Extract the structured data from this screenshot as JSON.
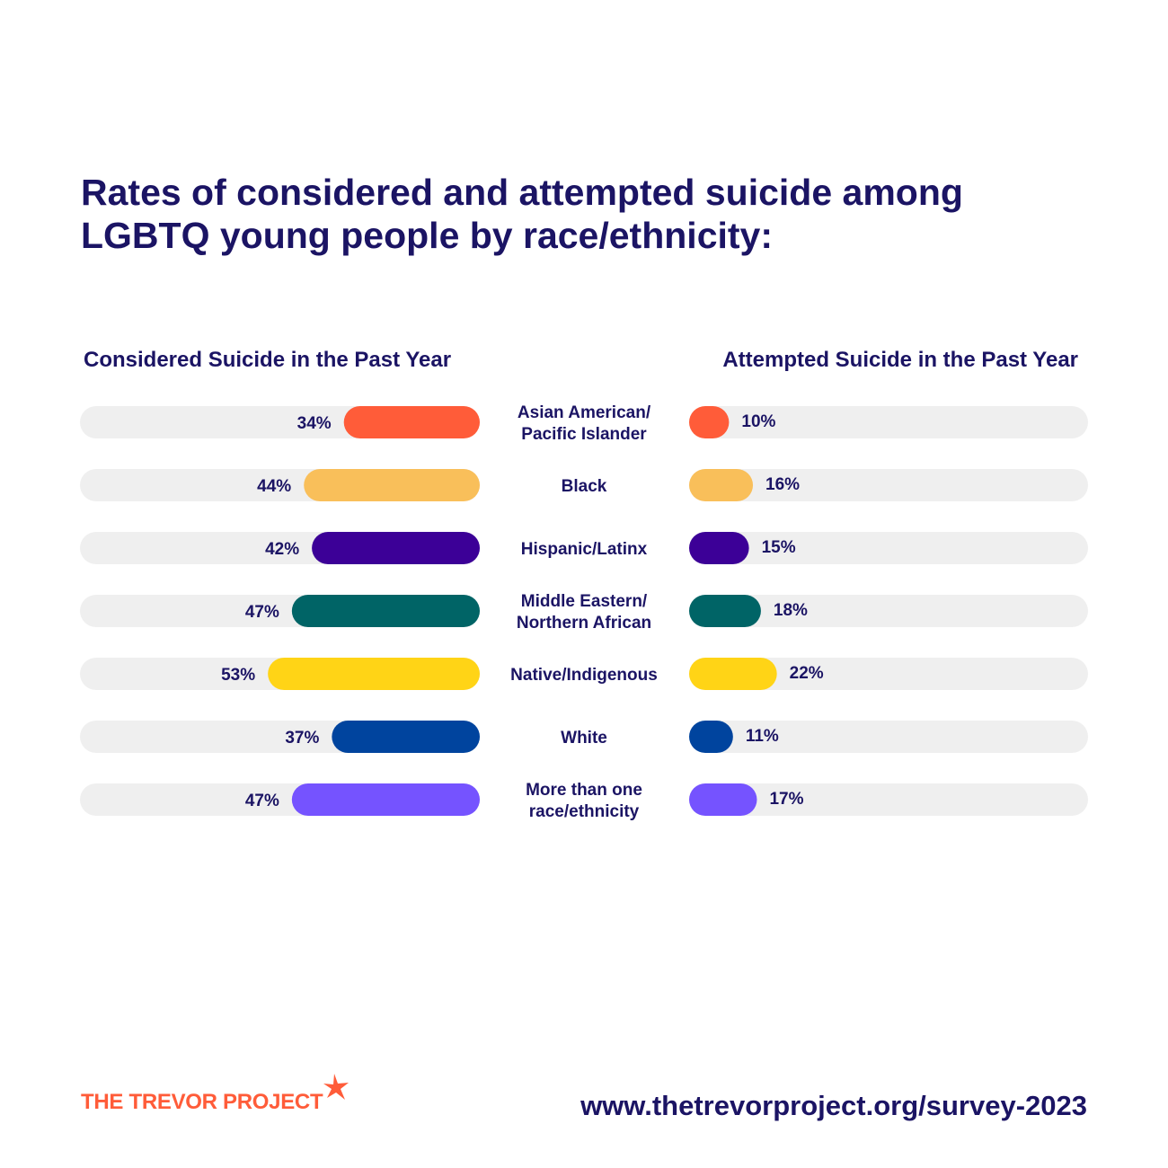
{
  "chart_data": {
    "type": "bar",
    "title": "Rates of considered and attempted suicide among LGBTQ young people by race/ethnicity:",
    "categories": [
      [
        "Asian American/",
        "Pacific Islander"
      ],
      [
        "Black"
      ],
      [
        "Hispanic/Latinx"
      ],
      [
        "Middle Eastern/",
        "Northern African"
      ],
      [
        "Native/Indigenous"
      ],
      [
        "White"
      ],
      [
        "More than one",
        "race/ethnicity"
      ]
    ],
    "colors": [
      "#ff5c39",
      "#f9bf5a",
      "#3c0097",
      "#006466",
      "#ffd416",
      "#00449e",
      "#7553ff"
    ],
    "track_color": "#efefef",
    "series": [
      {
        "name": "Considered Suicide in the Past Year",
        "values": [
          34,
          44,
          42,
          47,
          53,
          37,
          47
        ],
        "labels": [
          "34%",
          "44%",
          "42%",
          "47%",
          "53%",
          "37%",
          "47%"
        ],
        "direction": "right-to-left"
      },
      {
        "name": "Attempted Suicide in the Past Year",
        "values": [
          10,
          16,
          15,
          18,
          22,
          11,
          17
        ],
        "labels": [
          "10%",
          "16%",
          "15%",
          "18%",
          "22%",
          "11%",
          "17%"
        ],
        "direction": "left-to-right"
      }
    ],
    "xlim": [
      0,
      100
    ]
  },
  "footer": {
    "logo_text": "THE TREVOR PROJECT",
    "url": "www.thetrevorproject.org/survey-2023"
  }
}
